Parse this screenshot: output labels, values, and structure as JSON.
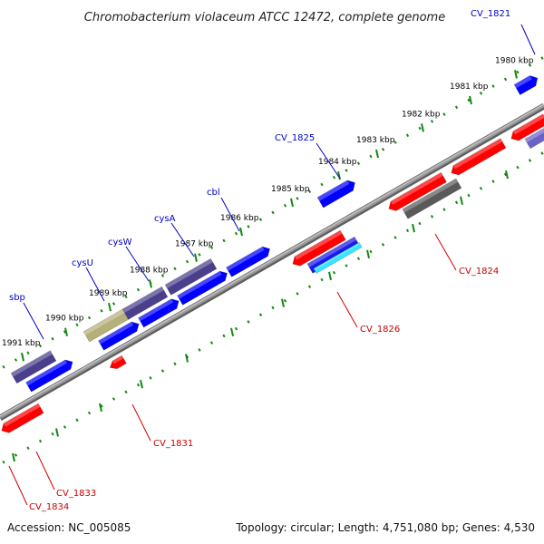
{
  "title": "Chromobacterium violaceum ATCC 12472, complete genome",
  "footer": {
    "accession": "Accession: NC_005085",
    "topology": "Topology: circular; Length: 4,751,080 bp; Genes: 4,530"
  },
  "colors": {
    "plus_strand_label": "#0000cc",
    "minus_strand_label": "#cc0000",
    "ticks": "#118811",
    "backbone": "#8a8a8a"
  },
  "kbp_labels": [
    "1980 kbp",
    "1981 kbp",
    "1982 kbp",
    "1983 kbp",
    "1984 kbp",
    "1985 kbp",
    "1986 kbp",
    "1987 kbp",
    "1988 kbp",
    "1989 kbp",
    "1990 kbp",
    "1991 kbp"
  ],
  "genes_plus": [
    {
      "label": "CV_1821",
      "color": "#0000ff"
    },
    {
      "label": "CV_1825",
      "color": "#0000ff"
    },
    {
      "label": "cbl",
      "color": "#0000ff"
    },
    {
      "label": "cysA",
      "color": "#4a3f8c"
    },
    {
      "label": "cysW",
      "color": "#4a3f8c"
    },
    {
      "label": "cysU",
      "color": "#4a3f8c"
    },
    {
      "label": "sbp",
      "color": "#4a3f8c"
    }
  ],
  "genes_minus": [
    {
      "label": "CV_1824",
      "color": "#ff0000"
    },
    {
      "label": "CV_1826",
      "color": "#ff0000"
    },
    {
      "label": "CV_1831",
      "color": "#ff0000"
    },
    {
      "label": "CV_1833",
      "color": "#ff0000"
    },
    {
      "label": "CV_1834",
      "color": "#ff0000"
    }
  ]
}
